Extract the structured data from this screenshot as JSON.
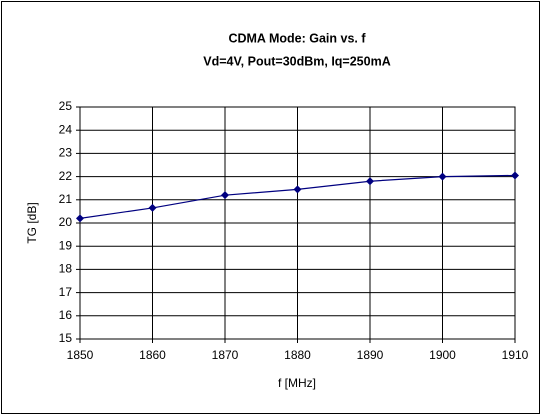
{
  "chart_data": {
    "type": "line",
    "title": "CDMA Mode: Gain vs. f",
    "subtitle": "Vd=4V, Pout=30dBm, Iq=250mA",
    "x_label": "f [MHz]",
    "y_label": "TG [dB]",
    "x": [
      1850,
      1860,
      1870,
      1880,
      1890,
      1900,
      1910
    ],
    "series": [
      {
        "color": "#000080",
        "values": [
          20.2,
          20.65,
          21.2,
          21.45,
          21.8,
          22.0,
          22.05
        ]
      }
    ],
    "xlim": [
      1850,
      1910
    ],
    "xticks": [
      1850,
      1860,
      1870,
      1880,
      1890,
      1900,
      1910
    ],
    "ylim": [
      15,
      25
    ],
    "yticks": [
      15,
      16,
      17,
      18,
      19,
      20,
      21,
      22,
      23,
      24,
      25
    ],
    "grid": true
  }
}
